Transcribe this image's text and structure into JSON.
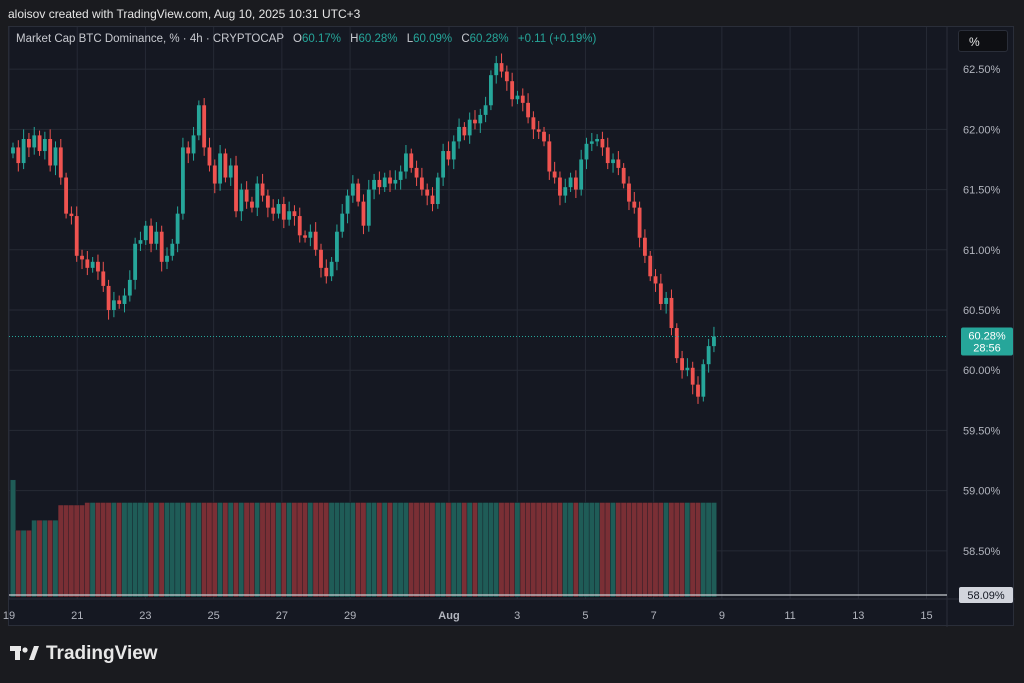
{
  "header": {
    "credit": "aloisov created with TradingView.com, Aug 10, 2025 10:31 UTC+3"
  },
  "legend": {
    "symbol": "Market Cap BTC Dominance, % · 4h · CRYPTOCAP",
    "o_label": "O",
    "o_value": "60.17%",
    "h_label": "H",
    "h_value": "60.28%",
    "l_label": "L",
    "l_value": "60.09%",
    "c_label": "C",
    "c_value": "60.28%",
    "change": "+0.11 (+0.19%)"
  },
  "scale_button": {
    "label": "%"
  },
  "footer": {
    "brand": "TradingView",
    "logo_icon": "tradingview-logo-icon"
  },
  "colors": {
    "up": "#26a69a",
    "down": "#ef5350",
    "up_vol": "#1f5c57",
    "down_vol": "#7a2f35",
    "bg": "#151822"
  },
  "chart_data": {
    "type": "candlestick",
    "yticks": [
      "62.50%",
      "62.00%",
      "61.50%",
      "61.00%",
      "60.50%",
      "60.00%",
      "59.50%",
      "59.00%",
      "58.50%"
    ],
    "ytick_values": [
      62.5,
      62.0,
      61.5,
      61.0,
      60.5,
      60.0,
      59.5,
      59.0,
      58.5
    ],
    "ylim": [
      58.1,
      62.85
    ],
    "xticks": [
      "19",
      "21",
      "23",
      "25",
      "27",
      "29",
      "Aug",
      "3",
      "5",
      "7",
      "9",
      "11",
      "13",
      "15"
    ],
    "xlim": [
      0,
      27.5
    ],
    "last_price": {
      "label": "60.28%",
      "countdown": "28:56",
      "value": 60.28
    },
    "bottom_label": {
      "label": "58.09%",
      "value": 58.09
    },
    "candles_close": [
      61.85,
      61.72,
      61.92,
      61.85,
      61.95,
      61.82,
      61.92,
      61.7,
      61.85,
      61.6,
      61.3,
      61.28,
      60.95,
      60.92,
      60.85,
      60.9,
      60.82,
      60.7,
      60.5,
      60.58,
      60.55,
      60.62,
      60.75,
      61.05,
      61.08,
      61.2,
      61.05,
      61.15,
      60.9,
      60.95,
      61.05,
      61.3,
      61.85,
      61.8,
      61.95,
      62.2,
      61.85,
      61.7,
      61.55,
      61.8,
      61.6,
      61.7,
      61.32,
      61.5,
      61.4,
      61.35,
      61.55,
      61.45,
      61.35,
      61.3,
      61.38,
      61.25,
      61.32,
      61.28,
      61.12,
      61.1,
      61.15,
      61.0,
      60.85,
      60.78,
      60.9,
      61.15,
      61.3,
      61.45,
      61.55,
      61.4,
      61.2,
      61.5,
      61.58,
      61.52,
      61.6,
      61.55,
      61.58,
      61.65,
      61.8,
      61.68,
      61.6,
      61.5,
      61.45,
      61.38,
      61.6,
      61.82,
      61.75,
      61.9,
      62.02,
      61.95,
      62.08,
      62.05,
      62.12,
      62.2,
      62.45,
      62.55,
      62.48,
      62.4,
      62.25,
      62.28,
      62.22,
      62.1,
      62.0,
      61.98,
      61.9,
      61.65,
      61.6,
      61.45,
      61.52,
      61.6,
      61.5,
      61.75,
      61.88,
      61.9,
      61.92,
      61.85,
      61.72,
      61.75,
      61.68,
      61.55,
      61.4,
      61.35,
      61.1,
      60.95,
      60.78,
      60.72,
      60.55,
      60.6,
      60.35,
      60.1,
      60.0,
      60.02,
      59.88,
      59.78,
      60.05,
      60.2,
      60.28
    ],
    "volumes": [
      0.93,
      0.53,
      0.53,
      0.53,
      0.61,
      0.61,
      0.61,
      0.61,
      0.61,
      0.73,
      0.73,
      0.73,
      0.73,
      0.73,
      0.75,
      0.75,
      0.75,
      0.75,
      0.75,
      0.75,
      0.75,
      0.75,
      0.75,
      0.75,
      0.75,
      0.75,
      0.75,
      0.75,
      0.75,
      0.75,
      0.75,
      0.75,
      0.75,
      0.75,
      0.75,
      0.75,
      0.75,
      0.75,
      0.75,
      0.75,
      0.75,
      0.75,
      0.75,
      0.75,
      0.75,
      0.75,
      0.75,
      0.75,
      0.75,
      0.75,
      0.75,
      0.75,
      0.75,
      0.75,
      0.75,
      0.75,
      0.75,
      0.75,
      0.75,
      0.75,
      0.75,
      0.75,
      0.75,
      0.75,
      0.75,
      0.75,
      0.75,
      0.75,
      0.75,
      0.75,
      0.75,
      0.75,
      0.75,
      0.75,
      0.75,
      0.75,
      0.75,
      0.75,
      0.75,
      0.75,
      0.75,
      0.75,
      0.75,
      0.75,
      0.75,
      0.75,
      0.75,
      0.75,
      0.75,
      0.75,
      0.75,
      0.75,
      0.75,
      0.75,
      0.75,
      0.75,
      0.75,
      0.75,
      0.75,
      0.75,
      0.75,
      0.75,
      0.75,
      0.75,
      0.75,
      0.75,
      0.75,
      0.75,
      0.75,
      0.75,
      0.75,
      0.75,
      0.75,
      0.75,
      0.75,
      0.75,
      0.75,
      0.75,
      0.75,
      0.75,
      0.75,
      0.75,
      0.75,
      0.75,
      0.75,
      0.75,
      0.75,
      0.75,
      0.75,
      0.75,
      0.75,
      0.75,
      0.75,
      0.75
    ]
  }
}
